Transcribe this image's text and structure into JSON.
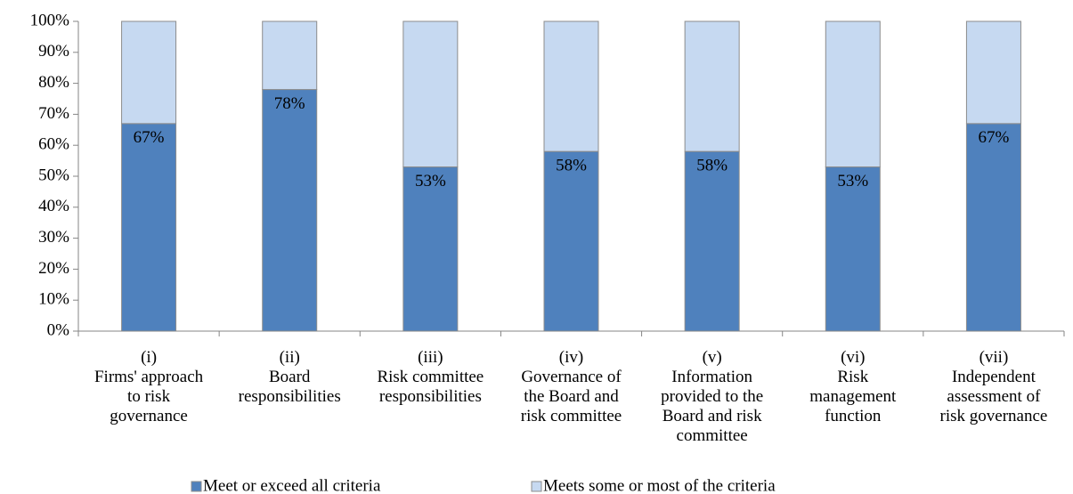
{
  "chart_data": {
    "type": "stacked_bar",
    "categories": [
      "(i)\nFirms' approach\nto risk\ngovernance",
      "(ii)\nBoard\nresponsibilities",
      "(iii)\nRisk committee\nresponsibilities",
      "(iv)\nGovernance of\nthe Board and\nrisk committee",
      "(v)\nInformation\nprovided to the\nBoard and risk\ncommittee",
      "(vi)\nRisk\nmanagement\nfunction",
      "(vii)\nIndependent\nassessment of\nrisk governance"
    ],
    "series": [
      {
        "name": "Meet or exceed all criteria",
        "color": "#4f81bd",
        "values": [
          67,
          78,
          53,
          58,
          58,
          53,
          67
        ],
        "value_labels": [
          "67%",
          "78%",
          "53%",
          "58%",
          "58%",
          "53%",
          "67%"
        ]
      },
      {
        "name": "Meets some or most of the criteria",
        "color": "#c6d9f1",
        "values": [
          33,
          22,
          47,
          42,
          42,
          47,
          33
        ]
      }
    ],
    "ylim": [
      0,
      100
    ],
    "yticks": [
      {
        "value": 0,
        "label": "0%"
      },
      {
        "value": 10,
        "label": "10%"
      },
      {
        "value": 20,
        "label": "20%"
      },
      {
        "value": 30,
        "label": "30%"
      },
      {
        "value": 40,
        "label": "40%"
      },
      {
        "value": 50,
        "label": "50%"
      },
      {
        "value": 60,
        "label": "60%"
      },
      {
        "value": 70,
        "label": "70%"
      },
      {
        "value": 80,
        "label": "80%"
      },
      {
        "value": 90,
        "label": "90%"
      },
      {
        "value": 100,
        "label": "100%"
      }
    ],
    "legend": "bottom"
  }
}
